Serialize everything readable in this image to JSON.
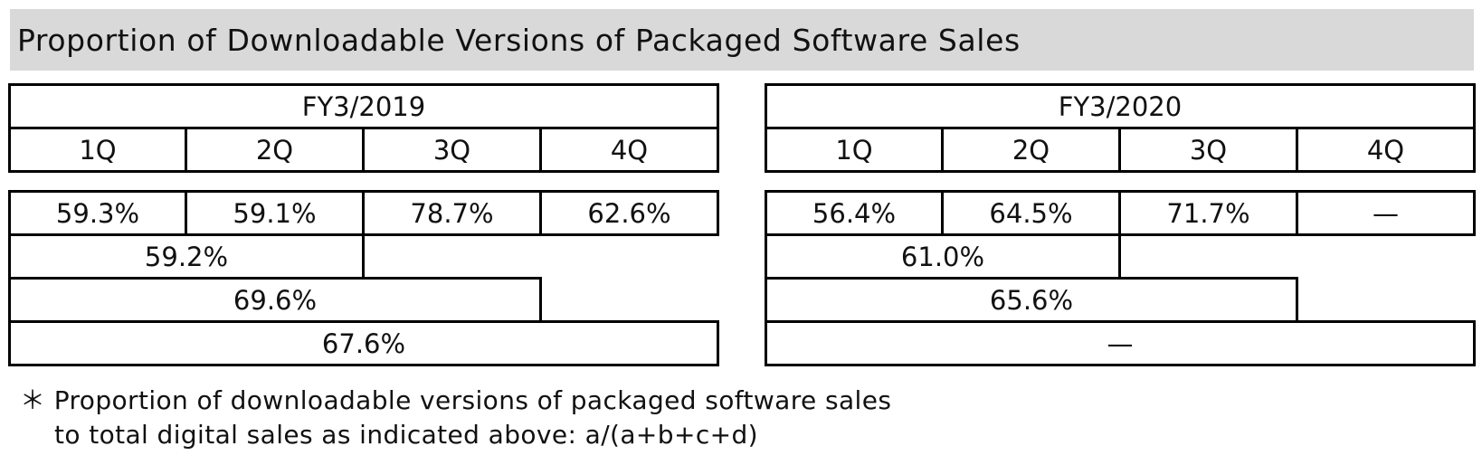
{
  "title": "Proportion of Downloadable Versions of Packaged Software Sales",
  "fiscal_years": [
    {
      "label": "FY3/2019",
      "quarters": [
        "1Q",
        "2Q",
        "3Q",
        "4Q"
      ],
      "quarterly": [
        "59.3%",
        "59.1%",
        "78.7%",
        "62.6%"
      ],
      "half_year": "59.2%",
      "nine_months": "69.6%",
      "full_year": "67.6%"
    },
    {
      "label": "FY3/2020",
      "quarters": [
        "1Q",
        "2Q",
        "3Q",
        "4Q"
      ],
      "quarterly": [
        "56.4%",
        "64.5%",
        "71.7%",
        "—"
      ],
      "half_year": "61.0%",
      "nine_months": "65.6%",
      "full_year": "—"
    }
  ],
  "footnote": {
    "marker": "＊",
    "line1": "Proportion of downloadable versions of packaged software sales",
    "line2": "to total digital sales as indicated above:  a/(a+b+c+d)"
  }
}
